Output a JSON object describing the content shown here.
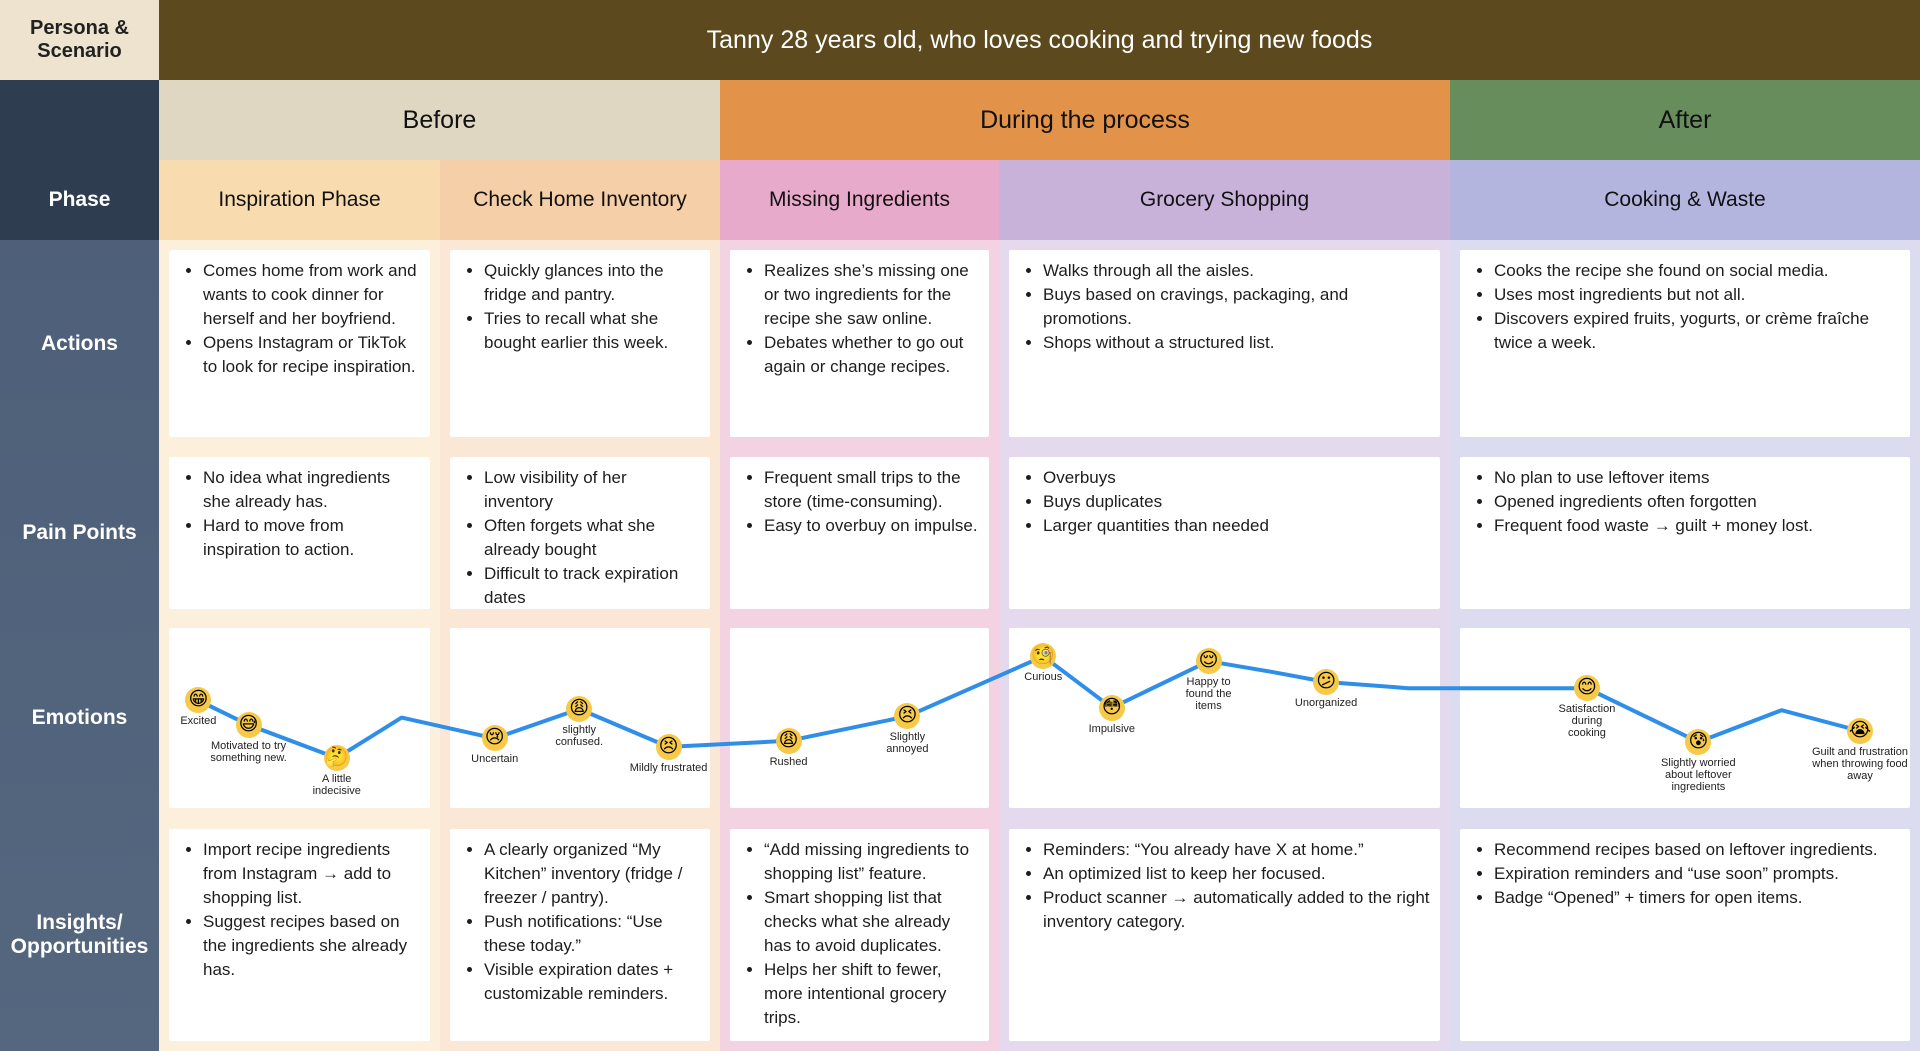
{
  "header": {
    "corner": "Persona & Scenario",
    "title": "Tanny 28 years old, who loves cooking and trying new foods"
  },
  "stages": [
    "Before",
    "During the process",
    "After"
  ],
  "phase_label": "Phase",
  "phases": [
    "Inspiration Phase",
    "Check Home Inventory",
    "Missing Ingredients",
    "Grocery Shopping",
    "Cooking & Waste"
  ],
  "rows": [
    {
      "label": "Actions",
      "cells": [
        [
          "Comes home from work and wants to cook dinner for herself and her boyfriend.",
          "Opens Instagram or TikTok to look for recipe inspiration."
        ],
        [
          "Quickly glances into the fridge and pantry.",
          "Tries to recall what she bought earlier this week."
        ],
        [
          "Realizes she’s missing one or two ingredients for the recipe she saw online.",
          "Debates whether to go out again or change recipes."
        ],
        [
          "Walks through all the aisles.",
          "Buys based on cravings, packaging, and promotions.",
          "Shops without a structured list."
        ],
        [
          "Cooks the recipe she found on social media.",
          "Uses most ingredients but not all.",
          "Discovers expired fruits, yogurts, or crème fraîche twice a week."
        ]
      ]
    },
    {
      "label": "Pain Points",
      "cells": [
        [
          "No idea what ingredients she already has.",
          "Hard to move from inspiration to action."
        ],
        [
          "Low visibility of her inventory",
          "Often forgets what she already bought",
          "Difficult to track expiration dates"
        ],
        [
          "Frequent small trips to the store (time-consuming).",
          "Easy to overbuy on impulse."
        ],
        [
          "Overbuys",
          "Buys duplicates",
          "Larger quantities than needed"
        ],
        [
          "No plan to use leftover items",
          "Opened ingredients often forgotten",
          "Frequent food waste → guilt + money lost."
        ]
      ]
    },
    {
      "label": "Emotions"
    },
    {
      "label": "Insights/ Opportunities",
      "cells": [
        [
          "Import recipe ingredients from Instagram → add to shopping list.",
          "Suggest recipes based on the ingredients she already has."
        ],
        [
          "A clearly organized “My Kitchen” inventory (fridge / freezer / pantry).",
          "Push notifications: “Use these today.”",
          "Visible expiration dates + customizable reminders."
        ],
        [
          "“Add missing ingredients to shopping list” feature.",
          "Smart shopping list that checks what she already has to avoid duplicates.",
          "Helps her shift to fewer, more intentional grocery trips."
        ],
        [
          "Reminders: “You already have X at home.”",
          "An optimized list to keep her focused.",
          "Product scanner → automatically added to the right inventory category."
        ],
        [
          "Recommend recipes based on leftover ingredients.",
          "Expiration reminders and “use soon” prompts.",
          "Badge “Opened” + timers for open items."
        ]
      ]
    }
  ],
  "emotions": [
    {
      "emoji": "😁",
      "label": "Excited"
    },
    {
      "emoji": "😅",
      "label": "Motivated to try something new."
    },
    {
      "emoji": "🤔",
      "label": "A little indecisive"
    },
    {
      "emoji": "😢",
      "label": "Uncertain"
    },
    {
      "emoji": "😩",
      "label": "slightly confused."
    },
    {
      "emoji": "😣",
      "label": "Mildly frustrated"
    },
    {
      "emoji": "😩",
      "label": "Rushed"
    },
    {
      "emoji": "😣",
      "label": "Slightly annoyed"
    },
    {
      "emoji": "🧐",
      "label": "Curious"
    },
    {
      "emoji": "😳",
      "label": "Impulsive"
    },
    {
      "emoji": "😌",
      "label": "Happy to found the items"
    },
    {
      "emoji": "😕",
      "label": "Unorganized"
    },
    {
      "emoji": "😊",
      "label": "Satisfaction during cooking"
    },
    {
      "emoji": "😰",
      "label": "Slightly worried about leftover ingredients"
    },
    {
      "emoji": "😭",
      "label": "Guilt and frustration when throwing food away"
    }
  ]
}
